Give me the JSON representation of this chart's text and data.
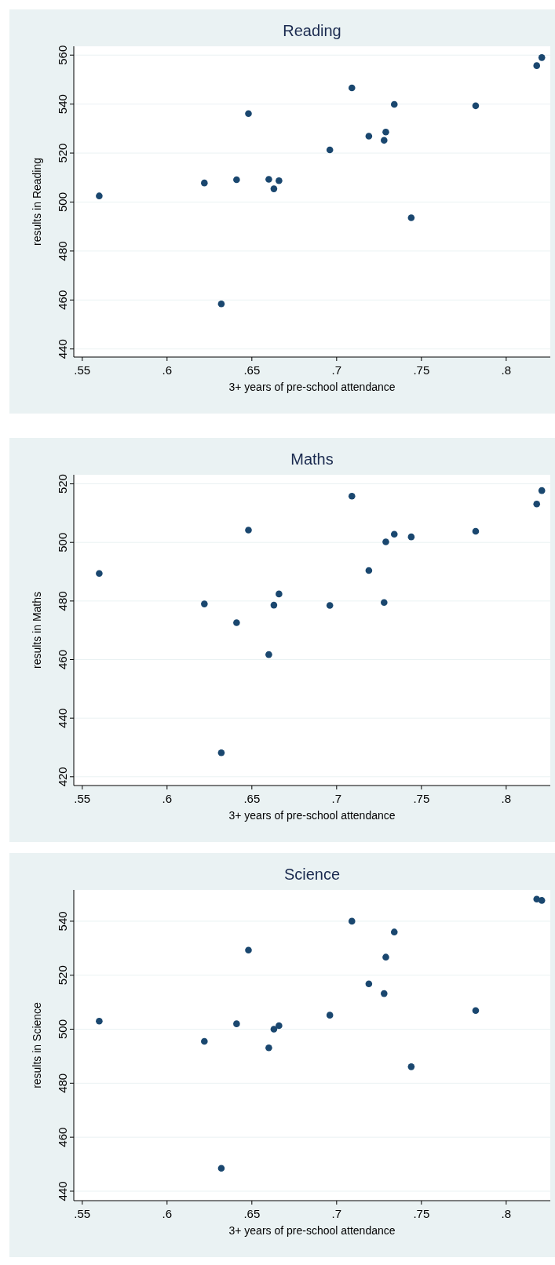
{
  "chart_data": [
    {
      "type": "scatter",
      "title": "Reading",
      "xlabel": "3+ years of pre-school attendance",
      "ylabel": "results in Reading",
      "color": "#1a476f",
      "marker": "circle",
      "grid": "y",
      "x": [
        0.56,
        0.622,
        0.632,
        0.641,
        0.648,
        0.66,
        0.663,
        0.666,
        0.696,
        0.709,
        0.719,
        0.728,
        0.729,
        0.734,
        0.744,
        0.782,
        0.818,
        0.821
      ],
      "values": [
        502.5,
        507.8,
        458.4,
        509.1,
        536.1,
        509.3,
        505.4,
        508.7,
        521.3,
        546.6,
        526.9,
        525.2,
        528.6,
        539.9,
        493.6,
        539.3,
        555.7,
        559.0
      ],
      "xlim": [
        0.545,
        0.826
      ],
      "ylim": [
        436.7,
        563.6
      ],
      "xticks": [
        {
          "value": 0.55,
          "label": ".55"
        },
        {
          "value": 0.6,
          "label": ".6"
        },
        {
          "value": 0.65,
          "label": ".65"
        },
        {
          "value": 0.7,
          "label": ".7"
        },
        {
          "value": 0.75,
          "label": ".75"
        },
        {
          "value": 0.8,
          "label": ".8"
        }
      ],
      "yticks": [
        440,
        460,
        480,
        500,
        520,
        540,
        560
      ]
    },
    {
      "type": "scatter",
      "title": "Maths",
      "xlabel": "3+ years of pre-school attendance",
      "ylabel": "results in Maths",
      "color": "#1a476f",
      "marker": "circle",
      "grid": "y",
      "x": [
        0.56,
        0.622,
        0.632,
        0.641,
        0.648,
        0.66,
        0.663,
        0.666,
        0.696,
        0.709,
        0.719,
        0.728,
        0.729,
        0.734,
        0.744,
        0.782,
        0.818,
        0.821
      ],
      "values": [
        489.4,
        479.0,
        428.2,
        472.6,
        504.2,
        461.7,
        478.6,
        482.4,
        478.5,
        515.8,
        490.4,
        479.5,
        500.2,
        502.8,
        501.9,
        503.8,
        513.1,
        517.7
      ],
      "xlim": [
        0.545,
        0.826
      ],
      "ylim": [
        417.0,
        523.1
      ],
      "xticks": [
        {
          "value": 0.55,
          "label": ".55"
        },
        {
          "value": 0.6,
          "label": ".6"
        },
        {
          "value": 0.65,
          "label": ".65"
        },
        {
          "value": 0.7,
          "label": ".7"
        },
        {
          "value": 0.75,
          "label": ".75"
        },
        {
          "value": 0.8,
          "label": ".8"
        }
      ],
      "yticks": [
        420,
        440,
        460,
        480,
        500,
        520
      ]
    },
    {
      "type": "scatter",
      "title": "Science",
      "xlabel": "3+ years of pre-school attendance",
      "ylabel": "results in Science",
      "color": "#1a476f",
      "marker": "circle",
      "grid": "y",
      "x": [
        0.56,
        0.622,
        0.632,
        0.641,
        0.648,
        0.66,
        0.663,
        0.666,
        0.696,
        0.709,
        0.719,
        0.728,
        0.729,
        0.734,
        0.744,
        0.782,
        0.818,
        0.821
      ],
      "values": [
        503.0,
        495.5,
        448.5,
        502.0,
        529.3,
        493.1,
        500.0,
        501.3,
        505.2,
        540.0,
        516.8,
        513.2,
        526.7,
        536.0,
        486.1,
        506.9,
        548.2,
        547.7
      ],
      "xlim": [
        0.545,
        0.826
      ],
      "ylim": [
        436.5,
        551.6
      ],
      "xticks": [
        {
          "value": 0.55,
          "label": ".55"
        },
        {
          "value": 0.6,
          "label": ".6"
        },
        {
          "value": 0.65,
          "label": ".65"
        },
        {
          "value": 0.7,
          "label": ".7"
        },
        {
          "value": 0.75,
          "label": ".75"
        },
        {
          "value": 0.8,
          "label": ".8"
        }
      ],
      "yticks": [
        440,
        460,
        480,
        500,
        520,
        540
      ]
    }
  ]
}
